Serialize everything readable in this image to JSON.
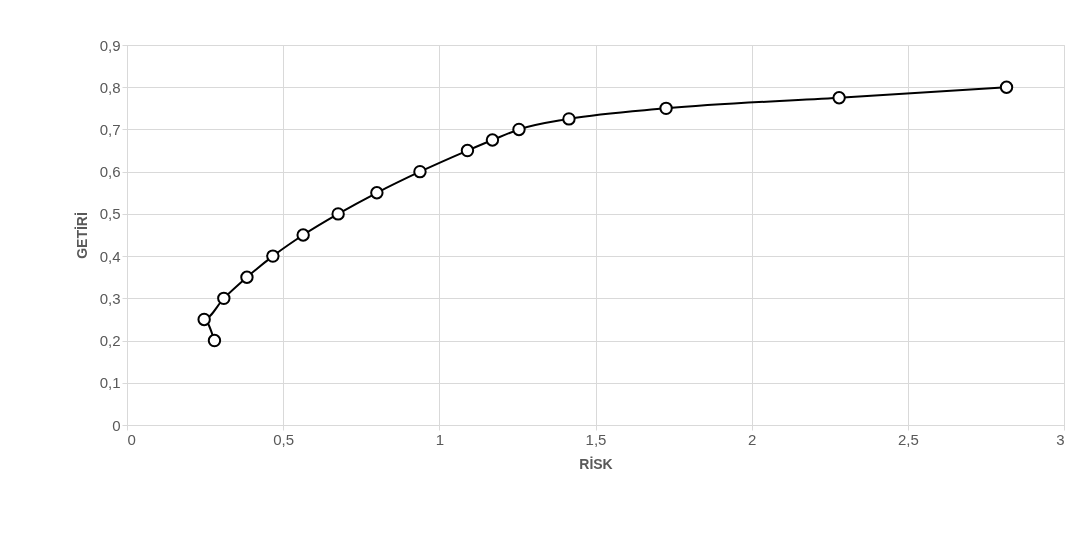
{
  "chart_data": {
    "type": "line",
    "xlabel": "RİSK",
    "ylabel": "GETİRİ",
    "x": [
      0.28,
      0.247,
      0.31,
      0.384,
      0.467,
      0.564,
      0.676,
      0.8,
      0.938,
      1.09,
      1.17,
      1.255,
      1.415,
      1.726,
      2.28,
      2.816
    ],
    "series": [
      {
        "color": "#000000",
        "values": [
          0.2,
          0.25,
          0.3,
          0.35,
          0.4,
          0.45,
          0.5,
          0.55,
          0.6,
          0.65,
          0.675,
          0.7,
          0.725,
          0.75,
          0.775,
          0.8
        ]
      }
    ],
    "xlim": [
      0,
      3
    ],
    "ylim": [
      0,
      0.9
    ],
    "xticks": [
      0,
      {
        "value": 0.5,
        "label": "0,5"
      },
      1,
      {
        "value": 1.5,
        "label": "1,5"
      },
      2,
      {
        "value": 2.5,
        "label": "2,5"
      },
      3
    ],
    "yticks": [
      0,
      {
        "value": 0.1,
        "label": "0,1"
      },
      {
        "value": 0.2,
        "label": "0,2"
      },
      {
        "value": 0.3,
        "label": "0,3"
      },
      {
        "value": 0.4,
        "label": "0,4"
      },
      {
        "value": 0.5,
        "label": "0,5"
      },
      {
        "value": 0.6,
        "label": "0,6"
      },
      {
        "value": 0.7,
        "label": "0,7"
      },
      {
        "value": 0.8,
        "label": "0,8"
      },
      {
        "value": 0.9,
        "label": "0,9"
      }
    ],
    "grid": true,
    "marker": "circle",
    "line_style": "solid"
  }
}
